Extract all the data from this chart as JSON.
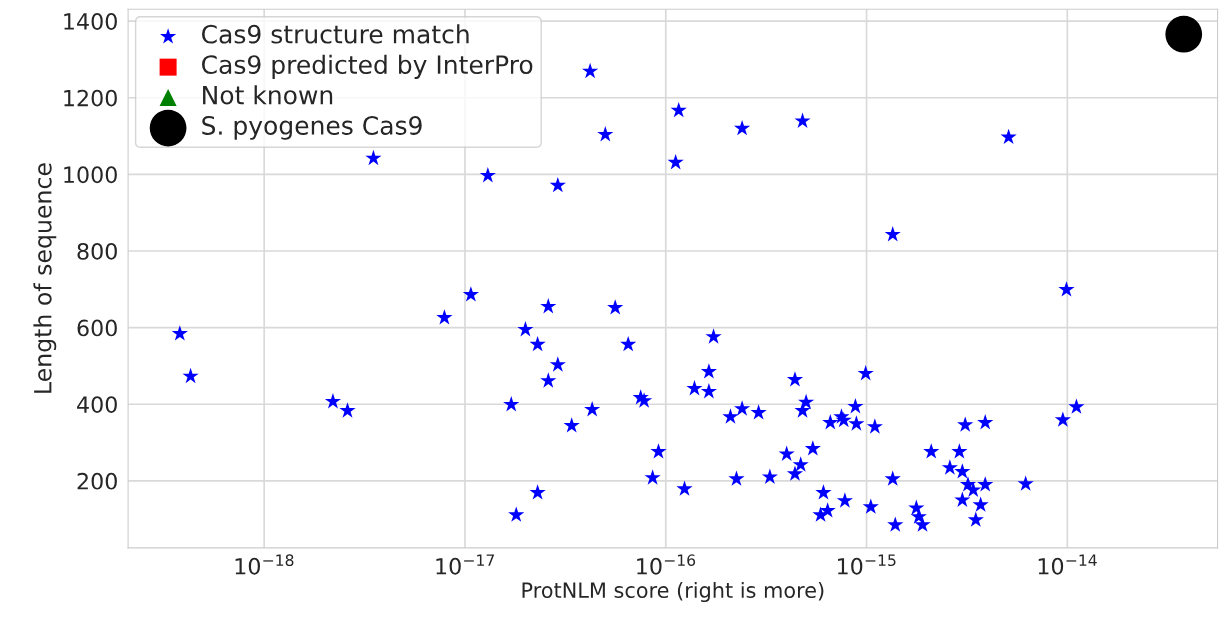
{
  "chart_data": {
    "type": "scatter",
    "xlabel": "ProtNLM score (right is more)",
    "ylabel": "Length of sequence",
    "log": "x",
    "xlim": [
      2.1e-19,
      5.6e-14
    ],
    "ylim": [
      25,
      1431
    ],
    "xticks": [
      {
        "value": 1e-18,
        "label": "10$^{−18}$"
      },
      {
        "value": 1e-17,
        "label": "10$^{−17}$"
      },
      {
        "value": 1e-16,
        "label": "10$^{−16}$"
      },
      {
        "value": 1e-15,
        "label": "10$^{−15}$"
      },
      {
        "value": 1e-14,
        "label": "10$^{−14}$"
      }
    ],
    "yticks": [
      200,
      400,
      600,
      800,
      1000,
      1200,
      1400
    ],
    "grid": true,
    "legend": "top left",
    "series": [
      {
        "name": "Cas9 structure match",
        "color": "#0000ff",
        "marker": "star",
        "x": [
          3.8e-19,
          4.3e-19,
          2.2e-18,
          2.6e-18,
          3.5e-18,
          7.9e-18,
          1.07e-17,
          1.3e-17,
          1.7e-17,
          1.8e-17,
          2e-17,
          2.3e-17,
          2.3e-17,
          2.6e-17,
          2.6e-17,
          2.9e-17,
          2.9e-17,
          3.4e-17,
          4.2e-17,
          4.3e-17,
          5e-17,
          5.6e-17,
          6.5e-17,
          7.5e-17,
          7.8e-17,
          8.6e-17,
          9.2e-17,
          1.12e-16,
          1.16e-16,
          1.24e-16,
          1.39e-16,
          1.64e-16,
          1.64e-16,
          1.73e-16,
          2.1e-16,
          2.25e-16,
          2.4e-16,
          2.4e-16,
          2.9e-16,
          3.3e-16,
          4e-16,
          4.4e-16,
          4.4e-16,
          4.7e-16,
          4.8e-16,
          4.8e-16,
          5e-16,
          5.4e-16,
          5.9e-16,
          6.1e-16,
          6.4e-16,
          6.6e-16,
          7.5e-16,
          7.7e-16,
          7.8e-16,
          8.8e-16,
          8.9e-16,
          9.9e-16,
          1.05e-15,
          1.1e-15,
          1.35e-15,
          1.35e-15,
          1.39e-15,
          2.1e-15,
          1.77e-15,
          1.82e-15,
          1.9e-15,
          2.6e-15,
          2.9e-15,
          3e-15,
          3e-15,
          3.1e-15,
          3.2e-15,
          3.4e-15,
          3.5e-15,
          3.7e-15,
          3.9e-15,
          3.9e-15,
          6.2e-15,
          5.1e-15,
          9.5e-15,
          9.9e-15,
          1.11e-14
        ],
        "values": [
          584,
          473,
          407,
          383,
          1042,
          626,
          686,
          997,
          399,
          111,
          595,
          556,
          169,
          655,
          461,
          503,
          971,
          344,
          1269,
          386,
          1104,
          652,
          556,
          417,
          409,
          208,
          276,
          1031,
          1167,
          179,
          441,
          485,
          433,
          576,
          367,
          205,
          1120,
          388,
          378,
          210,
          270,
          464,
          218,
          242,
          383,
          1139,
          405,
          284,
          111,
          169,
          122,
          352,
          367,
          358,
          148,
          394,
          349,
          480,
          132,
          341,
          843,
          205,
          85,
          276,
          129,
          106,
          85,
          234,
          276,
          224,
          150,
          346,
          190,
          176,
          98,
          137,
          190,
          352,
          192,
          1097,
          359,
          699,
          393
        ]
      },
      {
        "name": "Cas9 predicted by InterPro",
        "color": "#ff0000",
        "marker": "square"
      },
      {
        "name": "Not known",
        "color": "#008000",
        "marker": "triangle"
      },
      {
        "name": "S. pyogenes Cas9",
        "color": "#000000",
        "marker": "circle",
        "x": [
          3.8e-14
        ],
        "values": [
          1366
        ]
      }
    ]
  }
}
